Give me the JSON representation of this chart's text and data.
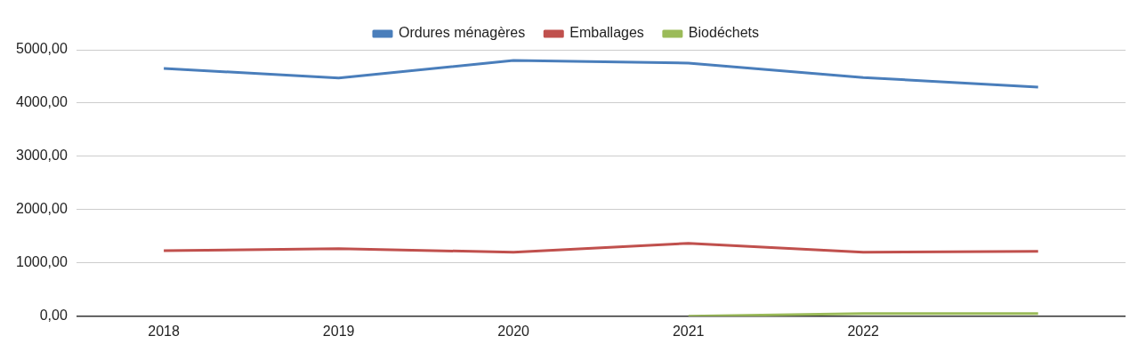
{
  "chart_data": {
    "type": "line",
    "categories": [
      "2018",
      "2019",
      "2020",
      "2021",
      "2022",
      null
    ],
    "series": [
      {
        "name": "Ordures ménagères",
        "color": "#4a7ebb",
        "values": [
          4650,
          4470,
          4800,
          4750,
          4480,
          4300
        ]
      },
      {
        "name": "Emballages",
        "color": "#c0504d",
        "values": [
          1230,
          1270,
          1200,
          1370,
          1200,
          1220
        ]
      },
      {
        "name": "Biodéchets",
        "color": "#9bbb59",
        "values": [
          null,
          null,
          null,
          0,
          50,
          50
        ]
      }
    ],
    "ylim": [
      0,
      5000
    ],
    "yticks": [
      {
        "value": 0,
        "label": "0,00"
      },
      {
        "value": 1000,
        "label": "1000,00"
      },
      {
        "value": 2000,
        "label": "2000,00"
      },
      {
        "value": 3000,
        "label": "3000,00"
      },
      {
        "value": 4000,
        "label": "4000,00"
      },
      {
        "value": 5000,
        "label": "5000,00"
      }
    ],
    "grid": "y",
    "legend": "top",
    "marker": "none",
    "line_style": "solid"
  }
}
